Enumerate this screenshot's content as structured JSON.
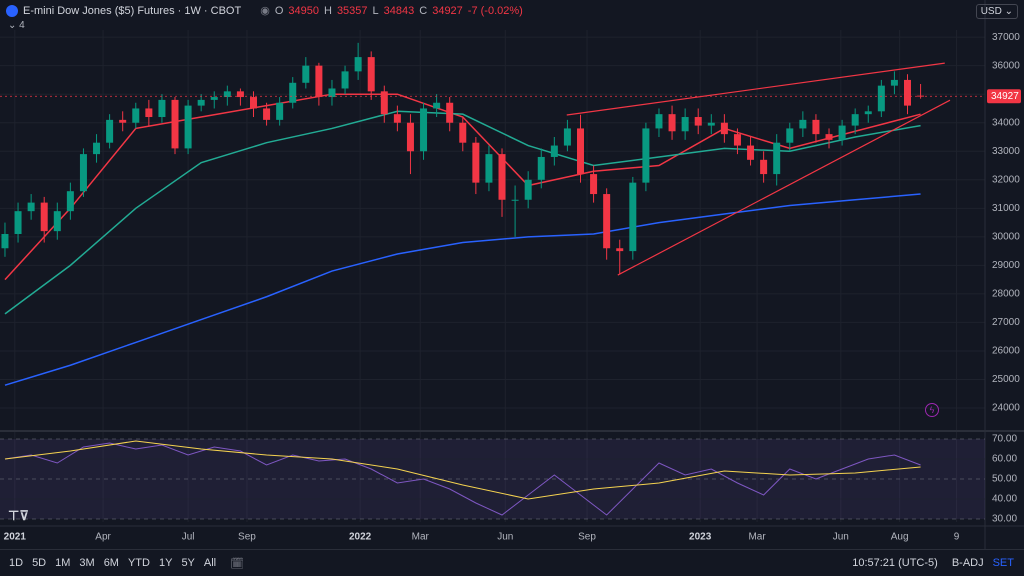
{
  "header": {
    "symbol": "E-mini Dow Jones ($5) Futures · 1W · CBOT",
    "ohlc": [
      {
        "label": "O",
        "value": 34950
      },
      {
        "label": "H",
        "value": 35357
      },
      {
        "label": "L",
        "value": 34843
      },
      {
        "label": "C",
        "value": 34927
      }
    ],
    "change": "-7 (-0.02%)",
    "indicators": 4
  },
  "currency": "USD",
  "toolbar": {
    "ranges": [
      "1D",
      "5D",
      "1M",
      "3M",
      "6M",
      "YTD",
      "1Y",
      "5Y",
      "All"
    ],
    "time": "10:57:21 (UTC-5)",
    "adj": "B-ADJ",
    "set": "SET"
  },
  "chart_data": [
    {
      "type": "candlestick",
      "up_color": "#089981",
      "down_color": "#f23645",
      "xlim": [
        -0.76,
        149.85
      ],
      "xticks": [
        {
          "value": 1.5,
          "label": "2021"
        },
        {
          "value": 15,
          "label": "Apr"
        },
        {
          "value": 28,
          "label": "Jul"
        },
        {
          "value": 37,
          "label": "Sep"
        },
        {
          "value": 54.3,
          "label": "2022"
        },
        {
          "value": 63.5,
          "label": "Mar"
        },
        {
          "value": 76.5,
          "label": "Jun"
        },
        {
          "value": 89,
          "label": "Sep"
        },
        {
          "value": 106.3,
          "label": "2023"
        },
        {
          "value": 115,
          "label": "Mar"
        },
        {
          "value": 127.8,
          "label": "Jun"
        },
        {
          "value": 136.8,
          "label": "Aug"
        },
        {
          "value": 145.5,
          "label": "9"
        }
      ],
      "ylim": [
        23300,
        37250
      ],
      "yticks": [
        24000,
        25000,
        26000,
        27000,
        28000,
        29000,
        30000,
        31000,
        32000,
        33000,
        34000,
        35000,
        36000,
        37000
      ],
      "x": [
        0,
        2,
        4,
        6,
        8,
        10,
        12,
        14,
        16,
        18,
        20,
        22,
        24,
        26,
        28,
        30,
        32,
        34,
        36,
        38,
        40,
        42,
        44,
        46,
        48,
        50,
        52,
        54,
        56,
        58,
        60,
        62,
        64,
        66,
        68,
        70,
        72,
        74,
        76,
        78,
        80,
        82,
        84,
        86,
        88,
        90,
        92,
        94,
        96,
        98,
        100,
        102,
        104,
        106,
        108,
        110,
        112,
        114,
        116,
        118,
        120,
        122,
        124,
        126,
        128,
        130,
        132,
        134,
        136,
        138,
        140
      ],
      "open": [
        29600,
        30100,
        30900,
        31200,
        30200,
        30900,
        31600,
        32900,
        33300,
        34100,
        34000,
        34500,
        34200,
        34800,
        33100,
        34600,
        34800,
        34900,
        35100,
        34900,
        34500,
        34100,
        34700,
        35400,
        36000,
        34900,
        35200,
        35800,
        36300,
        35100,
        34300,
        34000,
        33000,
        34500,
        34700,
        34000,
        33300,
        31900,
        32900,
        31300,
        31300,
        32000,
        32800,
        33200,
        33800,
        32200,
        31500,
        29600,
        29500,
        31900,
        33800,
        34300,
        33700,
        34200,
        33900,
        34000,
        33600,
        33200,
        32700,
        32200,
        33300,
        33800,
        34100,
        33600,
        33400,
        33900,
        34300,
        34400,
        35300,
        35500,
        34950
      ],
      "high": [
        30500,
        31200,
        31500,
        31400,
        31200,
        31900,
        33100,
        33600,
        34300,
        34400,
        34700,
        34800,
        35000,
        34900,
        34800,
        35000,
        35100,
        35300,
        35200,
        35100,
        34700,
        34900,
        35600,
        36300,
        36100,
        35500,
        36000,
        36800,
        36500,
        35300,
        34600,
        34300,
        34700,
        35000,
        34900,
        34200,
        33500,
        33200,
        33100,
        31800,
        32300,
        33100,
        33500,
        34100,
        34280,
        32500,
        31700,
        29900,
        32100,
        34000,
        34500,
        34600,
        34500,
        34500,
        34300,
        34300,
        33800,
        33500,
        33000,
        33600,
        34000,
        34400,
        34300,
        33800,
        34100,
        34500,
        34600,
        35500,
        35800,
        35700,
        35357
      ],
      "low": [
        29300,
        29800,
        30600,
        29800,
        29900,
        30600,
        31400,
        32600,
        33100,
        33700,
        33800,
        33900,
        34000,
        32900,
        32900,
        34400,
        34500,
        34600,
        34600,
        34200,
        33900,
        33900,
        34500,
        35200,
        34600,
        34600,
        35000,
        35500,
        34800,
        34000,
        33700,
        32200,
        32700,
        34200,
        33700,
        33000,
        31500,
        31600,
        30700,
        30000,
        31000,
        31700,
        32500,
        33000,
        31900,
        31200,
        29200,
        28700,
        29200,
        31600,
        33500,
        33400,
        33400,
        33600,
        33600,
        33300,
        32900,
        32500,
        31900,
        31800,
        33000,
        33500,
        33300,
        33100,
        33200,
        33600,
        34000,
        34200,
        35000,
        34300,
        34843
      ],
      "close": [
        30100,
        30900,
        31200,
        30200,
        30900,
        31600,
        32900,
        33300,
        34100,
        34000,
        34500,
        34200,
        34800,
        33100,
        34600,
        34800,
        34900,
        35100,
        34900,
        34500,
        34100,
        34700,
        35400,
        36000,
        34900,
        35200,
        35800,
        36300,
        35100,
        34300,
        34000,
        33000,
        34500,
        34700,
        34000,
        33300,
        31900,
        32900,
        31300,
        31300,
        32000,
        32800,
        33200,
        33800,
        32200,
        31500,
        29600,
        29500,
        31900,
        33800,
        34300,
        33700,
        34200,
        33900,
        34000,
        33600,
        33200,
        32700,
        32200,
        33300,
        33800,
        34100,
        33600,
        33400,
        33900,
        34300,
        34400,
        35300,
        35500,
        34600,
        34927
      ],
      "ma_x": [
        0,
        10,
        20,
        30,
        40,
        50,
        60,
        70,
        80,
        90,
        100,
        110,
        120,
        130,
        140
      ],
      "lines": [
        {
          "color": "#f23645",
          "values": [
            28500,
            31000,
            33800,
            34200,
            34600,
            35000,
            35000,
            34200,
            31800,
            32300,
            32500,
            33800,
            33100,
            33700,
            34300
          ]
        },
        {
          "color": "#22ab94",
          "values": [
            27300,
            29000,
            31000,
            32600,
            33300,
            33800,
            34400,
            34300,
            33200,
            32500,
            32800,
            33100,
            33000,
            33500,
            33900
          ]
        },
        {
          "color": "#2962ff",
          "values": [
            24800,
            25500,
            26300,
            27100,
            27900,
            28800,
            29400,
            29800,
            30000,
            30100,
            30500,
            30800,
            31100,
            31300,
            31500
          ]
        }
      ],
      "trendlines": [
        {
          "color": "#f23645",
          "x": [
            85.9,
            143.7
          ],
          "values": [
            34270,
            36090
          ]
        },
        {
          "color": "#f23645",
          "x": [
            93.7,
            144.5
          ],
          "values": [
            28660,
            34790
          ]
        }
      ]
    },
    {
      "type": "line",
      "xlim": [
        -0.76,
        149.85
      ],
      "ylim": [
        28.5,
        71.5
      ],
      "yticks": [
        {
          "value": 30,
          "label": "30.00"
        },
        {
          "value": 40,
          "label": "40.00"
        },
        {
          "value": 50,
          "label": "50.00"
        },
        {
          "value": 60,
          "label": "60.00"
        },
        {
          "value": 70,
          "label": "70.00"
        }
      ],
      "series": [
        {
          "color": "#7e57c2",
          "x": [
            0,
            4,
            8,
            12,
            16,
            20,
            24,
            28,
            32,
            36,
            40,
            44,
            48,
            52,
            56,
            60,
            64,
            68,
            72,
            76,
            80,
            84,
            88,
            92,
            96,
            100,
            104,
            108,
            112,
            116,
            120,
            124,
            128,
            132,
            136,
            140
          ],
          "values": [
            60,
            62,
            58,
            66,
            68,
            65,
            67,
            62,
            66,
            64,
            57,
            62,
            59,
            60,
            55,
            48,
            50,
            45,
            38,
            32,
            42,
            52,
            42,
            32,
            45,
            58,
            52,
            55,
            48,
            42,
            55,
            50,
            55,
            60,
            62,
            57
          ]
        },
        {
          "color": "#f5d350",
          "x": [
            0,
            10,
            20,
            30,
            40,
            50,
            60,
            70,
            80,
            90,
            100,
            110,
            120,
            130,
            140
          ],
          "values": [
            60,
            64,
            69,
            65,
            62,
            60,
            55,
            47,
            40,
            45,
            48,
            54,
            52,
            53,
            56
          ]
        }
      ]
    }
  ]
}
